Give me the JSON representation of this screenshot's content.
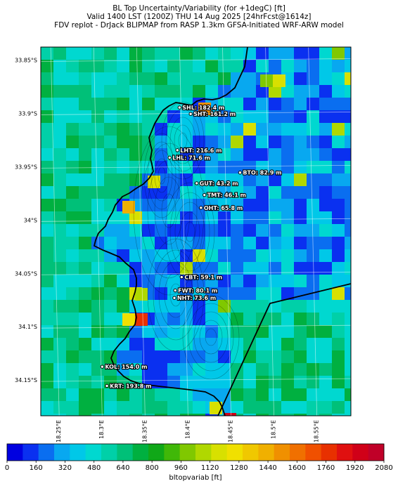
{
  "header": {
    "line1": "BL Top Uncertainty/Variability (for +1degC) [ft]",
    "line2": "Valid 1400 LST (1200Z) THU 14 Aug 2025 [24hrFcst@1614z]",
    "line3": "FDV replot - DrJack BLIPMAP from RASP 1.3km GFSA-Initiated WRF-ARW model"
  },
  "lat_ticks": [
    "33.85°S",
    "33.9°S",
    "33.95°S",
    "34°S",
    "34.05°S",
    "34.1°S",
    "34.15°S"
  ],
  "lon_ticks": [
    "18.25°E",
    "18.3°E",
    "18.35°E",
    "18.4°E",
    "18.45°E",
    "18.5°E",
    "18.55°E"
  ],
  "colorbar": {
    "label": "bltopvariab [ft]",
    "ticks": [
      "0",
      "160",
      "320",
      "480",
      "640",
      "800",
      "960",
      "1120",
      "1280",
      "1440",
      "1600",
      "1760",
      "1920",
      "2080"
    ],
    "colors": [
      "#0000e0",
      "#0a30f0",
      "#0a6ef0",
      "#08a8f0",
      "#00c8e8",
      "#00d8d0",
      "#00d0a8",
      "#00c078",
      "#00b040",
      "#10a818",
      "#40b808",
      "#80c800",
      "#b0d800",
      "#d8e000",
      "#f0e000",
      "#f0c800",
      "#f0b000",
      "#f09000",
      "#f07000",
      "#f05000",
      "#e83000",
      "#e01010",
      "#d00018",
      "#c00028"
    ],
    "min": 0,
    "max": 2080
  },
  "stations": [
    {
      "label": "SHL: 182.4 m",
      "lon": 18.395,
      "lat": -33.8945
    },
    {
      "label": "SHT: 161.2 m",
      "lon": 18.408,
      "lat": -33.9005
    },
    {
      "label": "LHT: 216.6 m",
      "lon": 18.3925,
      "lat": -33.9345
    },
    {
      "label": "LHL: 71.6 m",
      "lon": 18.3835,
      "lat": -33.9415
    },
    {
      "label": "BTO: 82.9 m",
      "lon": 18.4655,
      "lat": -33.9555
    },
    {
      "label": "GUT: 43.2 m",
      "lon": 18.415,
      "lat": -33.9655
    },
    {
      "label": "TMT: 46.1 m",
      "lon": 18.424,
      "lat": -33.9765
    },
    {
      "label": "OHT: 65.8 m",
      "lon": 18.42,
      "lat": -33.9885
    },
    {
      "label": "CBT: 59.1 m",
      "lon": 18.3975,
      "lat": -34.0535
    },
    {
      "label": "FWT: 80.1 m",
      "lon": 18.39,
      "lat": -34.066
    },
    {
      "label": "NHT: 73.6 m",
      "lon": 18.389,
      "lat": -34.073
    },
    {
      "label": "KOL: 154.0 m",
      "lon": 18.305,
      "lat": -34.1375
    },
    {
      "label": "KRT: 193.8 m",
      "lon": 18.3105,
      "lat": -34.1555
    }
  ]
}
